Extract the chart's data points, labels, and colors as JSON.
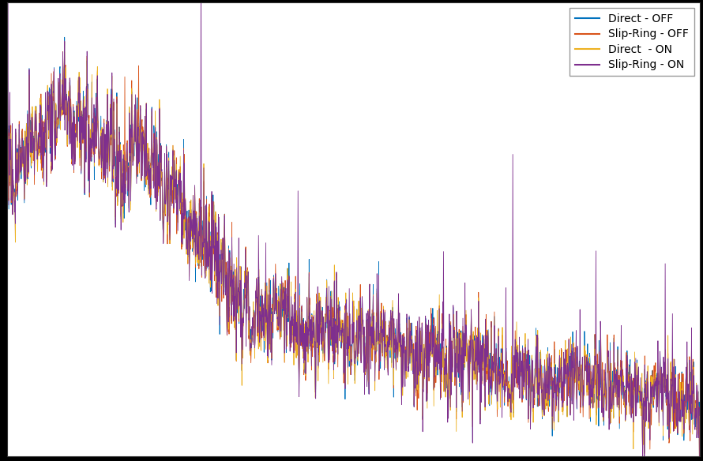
{
  "legend_labels": [
    "Direct - OFF",
    "Slip-Ring - OFF",
    "Direct  - ON",
    "Slip-Ring - ON"
  ],
  "line_colors": [
    "#0072BD",
    "#D95319",
    "#EDB120",
    "#7E2F8E"
  ],
  "line_width": 0.6,
  "background_color": "#ffffff",
  "fig_background_color": "#000000",
  "grid_color": "#aaaaaa",
  "grid_style": ":",
  "grid_linewidth": 0.5,
  "legend_loc": "upper right",
  "legend_fontsize": 10,
  "fig_width": 8.9,
  "fig_height": 5.84,
  "dpi": 100,
  "n_points": 2000,
  "base_seed": 77
}
